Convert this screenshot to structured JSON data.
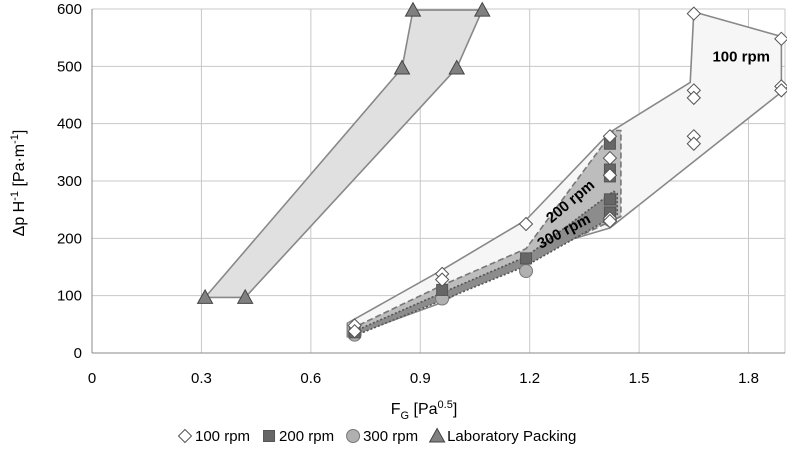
{
  "chart_data": {
    "type": "scatter",
    "x_axis": {
      "label_main": "F",
      "label_sub": "G",
      "label_unit_open": " [Pa",
      "label_sup": "0.5",
      "label_unit_close": "]",
      "range": [
        0,
        1.9
      ],
      "ticks": [
        0,
        0.3,
        0.6,
        0.9,
        1.2,
        1.5,
        1.8
      ],
      "tick_labels": [
        "0",
        "0.3",
        "0.6",
        "0.9",
        "1.2",
        "1.5",
        "1.8"
      ]
    },
    "y_axis": {
      "label_main": "Δp H",
      "label_sup1": "-1",
      "label_mid": " [Pa·m",
      "label_sup2": "-1",
      "label_end": "]",
      "range": [
        0,
        600
      ],
      "ticks": [
        0,
        100,
        200,
        300,
        400,
        500,
        600
      ],
      "tick_labels": [
        "0",
        "100",
        "200",
        "300",
        "400",
        "500",
        "600"
      ]
    },
    "grid": true,
    "legend_position": "bottom",
    "series": [
      {
        "name": "100 rpm",
        "marker": "diamond",
        "color": "#ffffff",
        "stroke": "#555555",
        "points": [
          [
            0.72,
            48
          ],
          [
            0.72,
            38
          ],
          [
            0.96,
            138
          ],
          [
            0.96,
            128
          ],
          [
            1.19,
            225
          ],
          [
            1.42,
            378
          ],
          [
            1.42,
            340
          ],
          [
            1.42,
            310
          ],
          [
            1.42,
            235
          ],
          [
            1.42,
            230
          ],
          [
            1.65,
            592
          ],
          [
            1.65,
            458
          ],
          [
            1.65,
            445
          ],
          [
            1.65,
            378
          ],
          [
            1.65,
            365
          ],
          [
            1.89,
            548
          ],
          [
            1.89,
            465
          ],
          [
            1.89,
            458
          ]
        ]
      },
      {
        "name": "200 rpm",
        "marker": "square",
        "color": "#666666",
        "stroke": "#555555",
        "points": [
          [
            0.72,
            36
          ],
          [
            0.96,
            110
          ],
          [
            1.19,
            165
          ],
          [
            1.42,
            365
          ],
          [
            1.42,
            320
          ],
          [
            1.42,
            308
          ],
          [
            1.42,
            268
          ],
          [
            1.42,
            245
          ]
        ]
      },
      {
        "name": "300 rpm",
        "marker": "circle",
        "color": "#b0b0b0",
        "stroke": "#777777",
        "points": [
          [
            0.72,
            32
          ],
          [
            0.96,
            95
          ],
          [
            1.19,
            143
          ],
          [
            1.42,
            232
          ]
        ]
      },
      {
        "name": "Laboratory Packing",
        "marker": "triangle",
        "color": "#808080",
        "stroke": "#444444",
        "points": [
          [
            0.31,
            97
          ],
          [
            0.42,
            97
          ],
          [
            0.85,
            497
          ],
          [
            1.0,
            497
          ],
          [
            0.88,
            598
          ],
          [
            1.07,
            598
          ]
        ]
      }
    ],
    "regions": [
      {
        "series": "Laboratory Packing",
        "fill": "#e0e0e0",
        "stroke": "#888888",
        "dash": "none",
        "polygon": [
          [
            0.31,
            97
          ],
          [
            0.42,
            97
          ],
          [
            1.0,
            497
          ],
          [
            1.07,
            598
          ],
          [
            0.88,
            598
          ],
          [
            0.85,
            497
          ]
        ]
      },
      {
        "series": "100 rpm",
        "fill": "#f6f6f6",
        "stroke": "#888888",
        "dash": "none",
        "polygon": [
          [
            0.7,
            52
          ],
          [
            0.96,
            145
          ],
          [
            1.19,
            232
          ],
          [
            1.42,
            385
          ],
          [
            1.64,
            472
          ],
          [
            1.65,
            595
          ],
          [
            1.89,
            552
          ],
          [
            1.89,
            455
          ],
          [
            1.42,
            218
          ],
          [
            1.19,
            175
          ],
          [
            0.96,
            88
          ],
          [
            0.7,
            28
          ]
        ]
      },
      {
        "series": "200 rpm",
        "fill": "#bdbdbd",
        "stroke": "#777777",
        "dash": "6,3",
        "polygon": [
          [
            0.71,
            42
          ],
          [
            0.96,
            118
          ],
          [
            1.19,
            182
          ],
          [
            1.43,
            388
          ],
          [
            1.45,
            388
          ],
          [
            1.45,
            238
          ],
          [
            1.19,
            160
          ],
          [
            0.96,
            96
          ],
          [
            0.71,
            30
          ]
        ]
      },
      {
        "series": "300 rpm",
        "fill": "#8c8c8c",
        "stroke": "#555555",
        "dash": "2,2",
        "polygon": [
          [
            0.72,
            38
          ],
          [
            0.96,
            105
          ],
          [
            1.19,
            168
          ],
          [
            1.43,
            282
          ],
          [
            1.44,
            278
          ],
          [
            1.44,
            242
          ],
          [
            1.19,
            152
          ],
          [
            0.96,
            92
          ],
          [
            0.72,
            30
          ]
        ]
      }
    ],
    "annotations": [
      {
        "text": "100 rpm",
        "x": 1.78,
        "y": 508,
        "rotate": 0
      },
      {
        "text": "200 rpm",
        "x": 1.32,
        "y": 258,
        "rotate": -40
      },
      {
        "text": "300 rpm",
        "x": 1.3,
        "y": 205,
        "rotate": -28
      }
    ]
  }
}
